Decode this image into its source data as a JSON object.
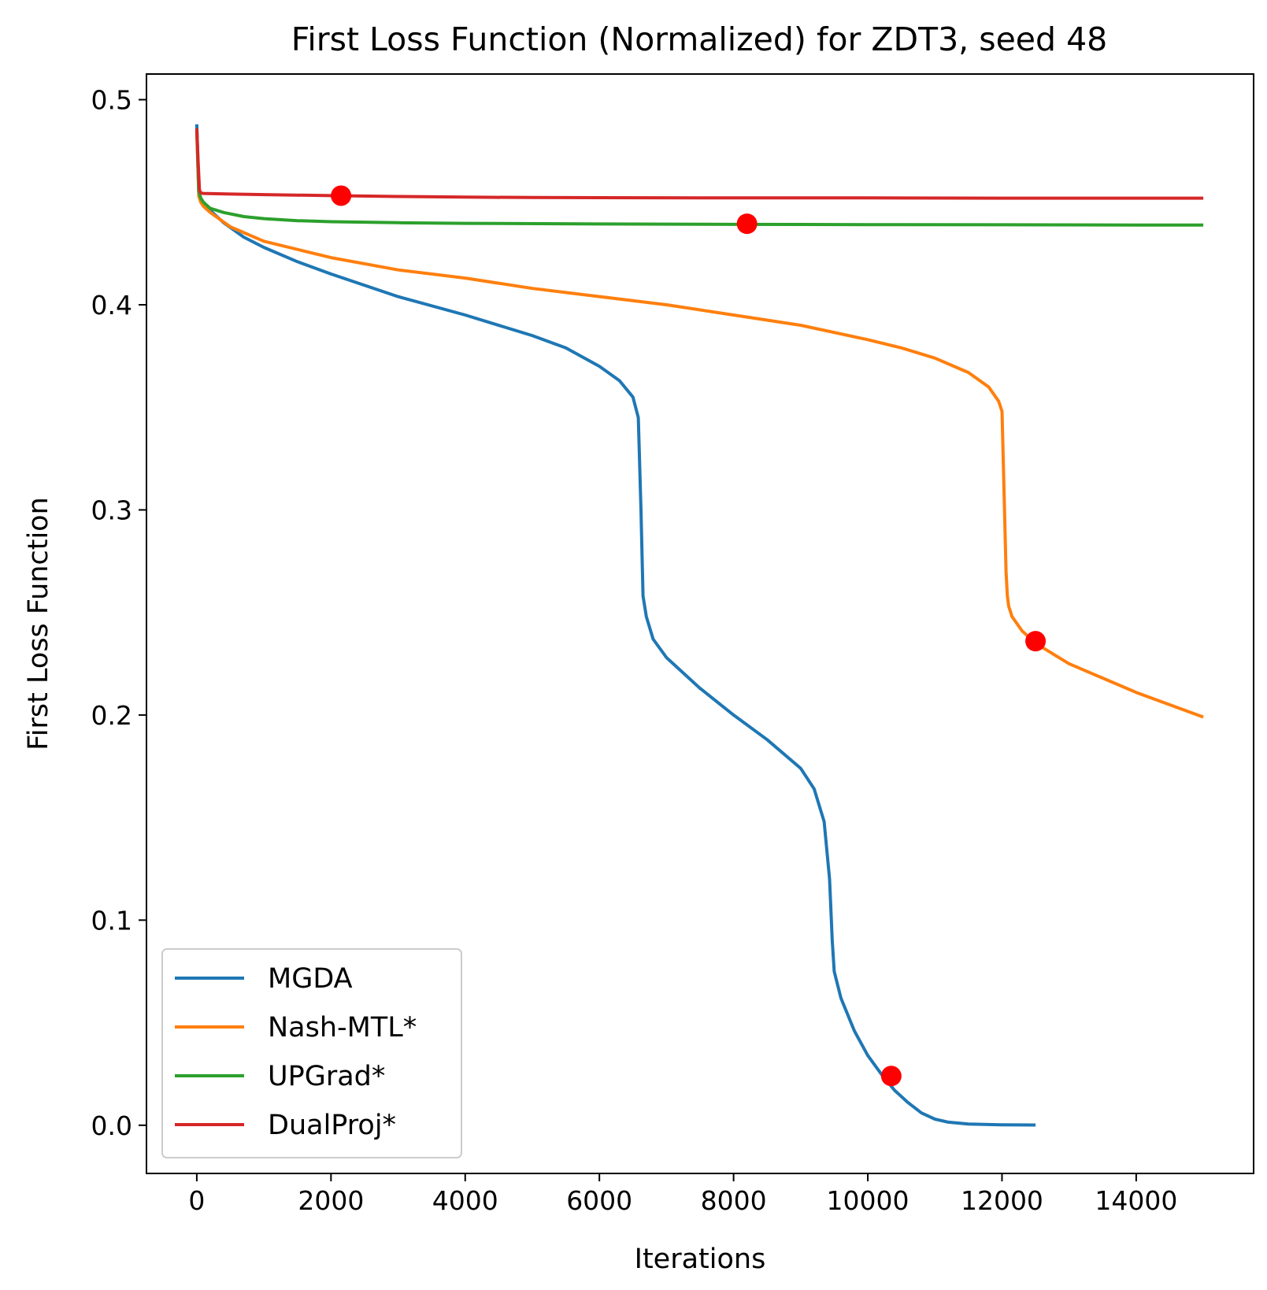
{
  "chart_data": {
    "type": "line",
    "title": "First Loss Function (Normalized) for ZDT3, seed 48",
    "xlabel": "Iterations",
    "ylabel": "First Loss Function",
    "xlim": [
      -750,
      15750
    ],
    "ylim": [
      -0.0235,
      0.5125
    ],
    "x_ticks": [
      0,
      2000,
      4000,
      6000,
      8000,
      10000,
      12000,
      14000
    ],
    "x_tick_labels": [
      "0",
      "2000",
      "4000",
      "6000",
      "8000",
      "10000",
      "12000",
      "14000"
    ],
    "y_ticks": [
      0.0,
      0.1,
      0.2,
      0.3,
      0.4,
      0.5
    ],
    "y_tick_labels": [
      "0.0",
      "0.1",
      "0.2",
      "0.3",
      "0.4",
      "0.5"
    ],
    "grid": false,
    "legend_position": "lower-left",
    "series": [
      {
        "name": "MGDA",
        "color": "#1f77b4",
        "x": [
          0,
          30,
          60,
          100,
          200,
          400,
          700,
          1000,
          1500,
          2000,
          3000,
          4000,
          5000,
          5500,
          6000,
          6300,
          6500,
          6580,
          6620,
          6650,
          6700,
          6800,
          7000,
          7500,
          8000,
          8500,
          9000,
          9200,
          9350,
          9430,
          9470,
          9500,
          9600,
          9800,
          10000,
          10200,
          10400,
          10600,
          10800,
          11000,
          11200,
          11500,
          12000,
          12500
        ],
        "y": [
          0.488,
          0.455,
          0.452,
          0.449,
          0.446,
          0.44,
          0.433,
          0.428,
          0.421,
          0.415,
          0.404,
          0.395,
          0.385,
          0.379,
          0.37,
          0.363,
          0.355,
          0.345,
          0.3,
          0.258,
          0.248,
          0.237,
          0.228,
          0.213,
          0.2,
          0.188,
          0.174,
          0.164,
          0.148,
          0.12,
          0.09,
          0.075,
          0.062,
          0.046,
          0.034,
          0.025,
          0.017,
          0.011,
          0.006,
          0.003,
          0.0015,
          0.0006,
          0.0002,
          0.0001
        ]
      },
      {
        "name": "Nash-MTL*",
        "color": "#ff7f0e",
        "x": [
          0,
          30,
          60,
          100,
          200,
          500,
          1000,
          2000,
          3000,
          4000,
          5000,
          6000,
          7000,
          8000,
          9000,
          10000,
          10500,
          11000,
          11500,
          11800,
          11950,
          12000,
          12030,
          12060,
          12080,
          12100,
          12150,
          12300,
          12500,
          12800,
          13000,
          13500,
          14000,
          14500,
          15000
        ],
        "y": [
          0.484,
          0.453,
          0.45,
          0.448,
          0.445,
          0.438,
          0.431,
          0.423,
          0.417,
          0.413,
          0.408,
          0.404,
          0.4,
          0.395,
          0.39,
          0.383,
          0.379,
          0.374,
          0.367,
          0.36,
          0.353,
          0.348,
          0.31,
          0.27,
          0.258,
          0.253,
          0.248,
          0.241,
          0.235,
          0.229,
          0.225,
          0.218,
          0.211,
          0.205,
          0.199
        ]
      },
      {
        "name": "UPGrad*",
        "color": "#2ca02c",
        "x": [
          0,
          30,
          60,
          100,
          200,
          400,
          700,
          1000,
          1500,
          2000,
          3000,
          4000,
          6000,
          8000,
          10000,
          12000,
          14000,
          15000
        ],
        "y": [
          0.486,
          0.455,
          0.452,
          0.45,
          0.447,
          0.445,
          0.443,
          0.442,
          0.441,
          0.4405,
          0.44,
          0.4397,
          0.4394,
          0.4392,
          0.4391,
          0.439,
          0.4389,
          0.4389
        ],
        "marker": {
          "x": 8200,
          "y": 0.4395
        }
      },
      {
        "name": "DualProj*",
        "color": "#d62728",
        "x": [
          0,
          20,
          40,
          60,
          100,
          500,
          1000,
          2000,
          3000,
          4000,
          5000,
          6000,
          8000,
          10000,
          12000,
          15000
        ],
        "y": [
          0.486,
          0.47,
          0.456,
          0.4545,
          0.4543,
          0.454,
          0.4537,
          0.4532,
          0.4528,
          0.4525,
          0.4523,
          0.4522,
          0.4521,
          0.4521,
          0.452,
          0.452
        ]
      }
    ],
    "markers": {
      "color": "#ff0000",
      "points": [
        {
          "series": "MGDA",
          "x": 10350,
          "y": 0.024
        },
        {
          "series": "Nash-MTL*",
          "x": 12500,
          "y": 0.236
        },
        {
          "series": "UPGrad*",
          "x": 8200,
          "y": 0.4395
        },
        {
          "series": "DualProj*",
          "x": 2150,
          "y": 0.4532
        }
      ]
    }
  }
}
